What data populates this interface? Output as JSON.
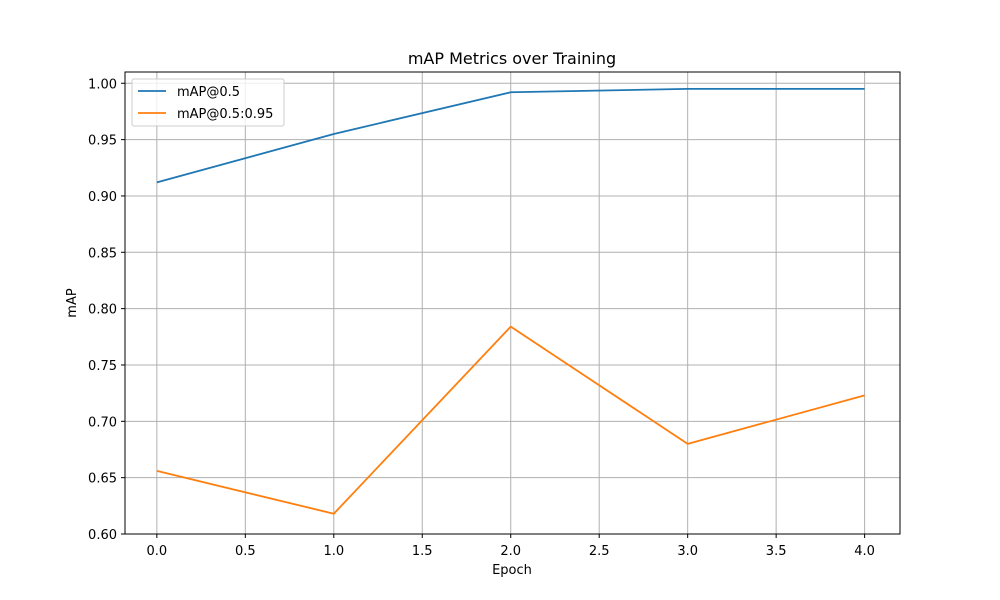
{
  "chart_data": {
    "type": "line",
    "title": "mAP Metrics over Training",
    "xlabel": "Epoch",
    "ylabel": "mAP",
    "x": [
      0,
      1,
      2,
      3,
      4
    ],
    "xlim": [
      -0.18,
      4.2
    ],
    "ylim": [
      0.6,
      1.01
    ],
    "xticks": [
      0.0,
      0.5,
      1.0,
      1.5,
      2.0,
      2.5,
      3.0,
      3.5,
      4.0
    ],
    "xtick_labels": [
      "0.0",
      "0.5",
      "1.0",
      "1.5",
      "2.0",
      "2.5",
      "3.0",
      "3.5",
      "4.0"
    ],
    "yticks": [
      0.6,
      0.65,
      0.7,
      0.75,
      0.8,
      0.85,
      0.9,
      0.95,
      1.0
    ],
    "ytick_labels": [
      "0.60",
      "0.65",
      "0.70",
      "0.75",
      "0.80",
      "0.85",
      "0.90",
      "0.95",
      "1.00"
    ],
    "grid": true,
    "legend_position": "top-left",
    "series": [
      {
        "name": "mAP@0.5",
        "color": "#1f77b4",
        "values": [
          0.912,
          0.955,
          0.992,
          0.995,
          0.995
        ]
      },
      {
        "name": "mAP@0.5:0.95",
        "color": "#ff7f0e",
        "values": [
          0.656,
          0.618,
          0.784,
          0.68,
          0.723
        ]
      }
    ]
  }
}
